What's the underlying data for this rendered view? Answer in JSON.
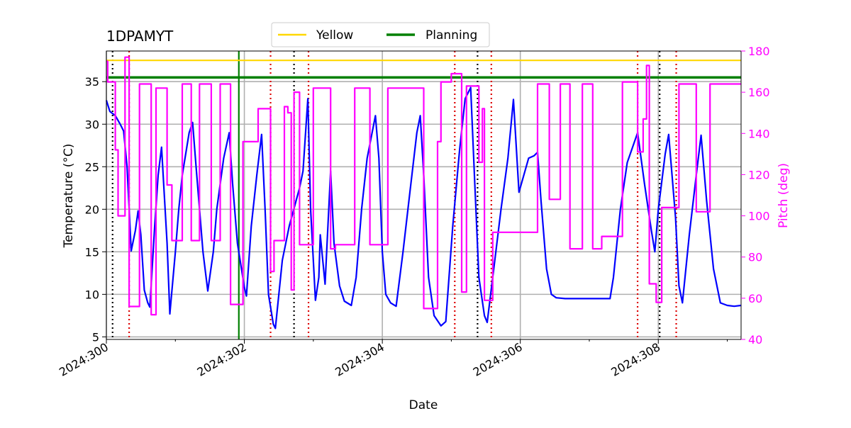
{
  "chart_data": {
    "type": "line",
    "title": "1DPAMYT",
    "xlabel": "Date",
    "ylabel": "Temperature ($^\\circ$C)",
    "ylabel_display": "Temperature (°C)",
    "y2label": "Pitch (deg)",
    "x_unit": "day-of-year 2024",
    "xlim": [
      300.0,
      309.2
    ],
    "ylim": [
      4.7,
      38.6
    ],
    "y2lim": [
      40,
      180
    ],
    "x_ticks": [
      300,
      302,
      304,
      306,
      308
    ],
    "x_tick_labels": [
      "2024:300",
      "2024:302",
      "2024:304",
      "2024:306",
      "2024:308"
    ],
    "y_ticks": [
      5,
      10,
      15,
      20,
      25,
      30,
      35
    ],
    "y2_ticks": [
      40,
      60,
      80,
      100,
      120,
      140,
      160,
      180
    ],
    "grid": true,
    "legend_position": "top-center",
    "legend": [
      {
        "name": "Yellow",
        "color": "#ffd700"
      },
      {
        "name": "Planning",
        "color": "#008000"
      }
    ],
    "limits": [
      {
        "name": "Yellow",
        "value": 37.5,
        "color": "#ffd700"
      },
      {
        "name": "Planning",
        "value": 35.5,
        "color": "#008000"
      }
    ],
    "green_vline_x": 301.92,
    "black_dotted_vlines": [
      300.09,
      302.72,
      305.38,
      308.02
    ],
    "red_dotted_vlines": [
      300.33,
      302.38,
      302.93,
      305.05,
      305.58,
      307.7,
      308.26
    ],
    "series": [
      {
        "name": "Temperature",
        "axis": "left",
        "color": "#0000ff",
        "points": [
          [
            300.0,
            32.8
          ],
          [
            300.05,
            31.5
          ],
          [
            300.13,
            31.0
          ],
          [
            300.2,
            30.0
          ],
          [
            300.25,
            29.2
          ],
          [
            300.3,
            25.0
          ],
          [
            300.36,
            15.1
          ],
          [
            300.42,
            17.5
          ],
          [
            300.46,
            19.8
          ],
          [
            300.5,
            17.0
          ],
          [
            300.55,
            10.5
          ],
          [
            300.6,
            9.0
          ],
          [
            300.63,
            8.5
          ],
          [
            300.7,
            18.0
          ],
          [
            300.75,
            24.0
          ],
          [
            300.8,
            27.3
          ],
          [
            300.88,
            16.0
          ],
          [
            300.92,
            7.7
          ],
          [
            301.0,
            15.0
          ],
          [
            301.05,
            20.0
          ],
          [
            301.1,
            24.0
          ],
          [
            301.2,
            29.0
          ],
          [
            301.25,
            30.2
          ],
          [
            301.3,
            25.0
          ],
          [
            301.4,
            15.0
          ],
          [
            301.47,
            10.4
          ],
          [
            301.55,
            15.0
          ],
          [
            301.6,
            20.0
          ],
          [
            301.7,
            26.0
          ],
          [
            301.78,
            29.0
          ],
          [
            301.83,
            23.0
          ],
          [
            301.9,
            16.0
          ],
          [
            302.0,
            10.8
          ],
          [
            302.03,
            9.8
          ],
          [
            302.1,
            18.0
          ],
          [
            302.18,
            24.0
          ],
          [
            302.25,
            28.8
          ],
          [
            302.3,
            20.0
          ],
          [
            302.35,
            10.0
          ],
          [
            302.42,
            6.5
          ],
          [
            302.45,
            6.0
          ],
          [
            302.55,
            14.0
          ],
          [
            302.65,
            18.0
          ],
          [
            302.75,
            21.0
          ],
          [
            302.8,
            22.5
          ],
          [
            302.85,
            24.5
          ],
          [
            302.92,
            33.0
          ],
          [
            302.96,
            20.0
          ],
          [
            303.03,
            9.3
          ],
          [
            303.08,
            12.0
          ],
          [
            303.1,
            17.0
          ],
          [
            303.17,
            11.2
          ],
          [
            303.25,
            24.5
          ],
          [
            303.3,
            16.0
          ],
          [
            303.38,
            11.0
          ],
          [
            303.45,
            9.2
          ],
          [
            303.55,
            8.7
          ],
          [
            303.62,
            12.0
          ],
          [
            303.7,
            20.0
          ],
          [
            303.78,
            26.0
          ],
          [
            303.9,
            31.0
          ],
          [
            303.95,
            26.0
          ],
          [
            304.0,
            15.0
          ],
          [
            304.05,
            10.0
          ],
          [
            304.12,
            9.0
          ],
          [
            304.2,
            8.6
          ],
          [
            304.3,
            15.0
          ],
          [
            304.4,
            22.0
          ],
          [
            304.5,
            29.0
          ],
          [
            304.55,
            31.0
          ],
          [
            304.6,
            24.0
          ],
          [
            304.67,
            12.0
          ],
          [
            304.75,
            7.5
          ],
          [
            304.85,
            6.3
          ],
          [
            304.92,
            6.8
          ],
          [
            305.02,
            18.0
          ],
          [
            305.12,
            27.0
          ],
          [
            305.2,
            33.0
          ],
          [
            305.28,
            34.3
          ],
          [
            305.34,
            23.0
          ],
          [
            305.4,
            12.0
          ],
          [
            305.48,
            7.5
          ],
          [
            305.52,
            6.7
          ],
          [
            305.6,
            12.0
          ],
          [
            305.72,
            20.0
          ],
          [
            305.82,
            26.0
          ],
          [
            305.9,
            32.9
          ],
          [
            305.98,
            22.0
          ],
          [
            306.05,
            24.0
          ],
          [
            306.12,
            26.0
          ],
          [
            306.2,
            26.3
          ],
          [
            306.25,
            26.7
          ],
          [
            306.3,
            21.0
          ],
          [
            306.38,
            13.0
          ],
          [
            306.45,
            10.0
          ],
          [
            306.52,
            9.6
          ],
          [
            306.65,
            9.5
          ],
          [
            307.0,
            9.5
          ],
          [
            307.3,
            9.5
          ],
          [
            307.35,
            12.0
          ],
          [
            307.45,
            20.0
          ],
          [
            307.55,
            25.5
          ],
          [
            307.7,
            29.0
          ],
          [
            307.8,
            23.0
          ],
          [
            307.9,
            17.5
          ],
          [
            307.95,
            15.0
          ],
          [
            308.0,
            20.0
          ],
          [
            308.1,
            26.5
          ],
          [
            308.15,
            28.8
          ],
          [
            308.25,
            19.0
          ],
          [
            308.3,
            11.0
          ],
          [
            308.35,
            9.0
          ],
          [
            308.45,
            17.0
          ],
          [
            308.55,
            24.0
          ],
          [
            308.62,
            28.7
          ],
          [
            308.7,
            21.0
          ],
          [
            308.8,
            13.0
          ],
          [
            308.9,
            9.0
          ],
          [
            309.0,
            8.7
          ],
          [
            309.1,
            8.6
          ],
          [
            309.2,
            8.7
          ]
        ]
      },
      {
        "name": "Pitch",
        "axis": "right",
        "color": "#ff00ff",
        "points": [
          [
            300.0,
            175
          ],
          [
            300.02,
            175
          ],
          [
            300.02,
            165
          ],
          [
            300.13,
            165
          ],
          [
            300.13,
            132
          ],
          [
            300.17,
            132
          ],
          [
            300.17,
            100
          ],
          [
            300.27,
            100
          ],
          [
            300.27,
            177
          ],
          [
            300.33,
            177
          ],
          [
            300.33,
            56
          ],
          [
            300.48,
            56
          ],
          [
            300.48,
            164
          ],
          [
            300.65,
            164
          ],
          [
            300.65,
            52
          ],
          [
            300.72,
            52
          ],
          [
            300.72,
            162
          ],
          [
            300.88,
            162
          ],
          [
            300.88,
            115
          ],
          [
            300.95,
            115
          ],
          [
            300.95,
            88
          ],
          [
            301.1,
            88
          ],
          [
            301.1,
            164
          ],
          [
            301.23,
            164
          ],
          [
            301.23,
            88
          ],
          [
            301.35,
            88
          ],
          [
            301.35,
            164
          ],
          [
            301.52,
            164
          ],
          [
            301.52,
            88
          ],
          [
            301.65,
            88
          ],
          [
            301.65,
            164
          ],
          [
            301.8,
            164
          ],
          [
            301.8,
            57
          ],
          [
            301.98,
            57
          ],
          [
            301.98,
            136
          ],
          [
            302.0,
            136
          ],
          [
            302.0,
            136
          ],
          [
            302.2,
            136
          ],
          [
            302.2,
            152
          ],
          [
            302.38,
            152
          ],
          [
            302.38,
            73
          ],
          [
            302.43,
            73
          ],
          [
            302.43,
            88
          ],
          [
            302.58,
            88
          ],
          [
            302.58,
            153
          ],
          [
            302.63,
            153
          ],
          [
            302.63,
            150
          ],
          [
            302.68,
            150
          ],
          [
            302.68,
            64
          ],
          [
            302.72,
            64
          ],
          [
            302.72,
            160
          ],
          [
            302.8,
            160
          ],
          [
            302.8,
            86
          ],
          [
            303.0,
            86
          ],
          [
            303.0,
            162
          ],
          [
            303.25,
            162
          ],
          [
            303.25,
            84
          ],
          [
            303.32,
            84
          ],
          [
            303.32,
            86
          ],
          [
            303.6,
            86
          ],
          [
            303.6,
            162
          ],
          [
            303.82,
            162
          ],
          [
            303.82,
            86
          ],
          [
            304.08,
            86
          ],
          [
            304.08,
            162
          ],
          [
            304.6,
            162
          ],
          [
            304.6,
            55
          ],
          [
            304.8,
            55
          ],
          [
            304.8,
            136
          ],
          [
            304.85,
            136
          ],
          [
            304.85,
            165
          ],
          [
            305.0,
            165
          ],
          [
            305.0,
            169
          ],
          [
            305.15,
            169
          ],
          [
            305.15,
            63
          ],
          [
            305.22,
            63
          ],
          [
            305.22,
            163
          ],
          [
            305.4,
            163
          ],
          [
            305.4,
            126
          ],
          [
            305.45,
            126
          ],
          [
            305.45,
            152
          ],
          [
            305.48,
            152
          ],
          [
            305.48,
            59
          ],
          [
            305.6,
            59
          ],
          [
            305.6,
            92
          ],
          [
            306.25,
            92
          ],
          [
            306.25,
            164
          ],
          [
            306.42,
            164
          ],
          [
            306.42,
            108
          ],
          [
            306.58,
            108
          ],
          [
            306.58,
            164
          ],
          [
            306.72,
            164
          ],
          [
            306.72,
            84
          ],
          [
            306.9,
            84
          ],
          [
            306.9,
            164
          ],
          [
            307.05,
            164
          ],
          [
            307.05,
            84
          ],
          [
            307.18,
            84
          ],
          [
            307.18,
            90
          ],
          [
            307.48,
            90
          ],
          [
            307.48,
            165
          ],
          [
            307.7,
            165
          ],
          [
            307.7,
            131
          ],
          [
            307.78,
            131
          ],
          [
            307.78,
            147
          ],
          [
            307.83,
            147
          ],
          [
            307.83,
            173
          ],
          [
            307.87,
            173
          ],
          [
            307.87,
            67
          ],
          [
            307.97,
            67
          ],
          [
            307.97,
            58
          ],
          [
            308.05,
            58
          ],
          [
            308.05,
            104
          ],
          [
            308.3,
            104
          ],
          [
            308.3,
            164
          ],
          [
            308.55,
            164
          ],
          [
            308.55,
            102
          ],
          [
            308.75,
            102
          ],
          [
            308.75,
            164
          ],
          [
            309.2,
            164
          ]
        ]
      }
    ]
  }
}
